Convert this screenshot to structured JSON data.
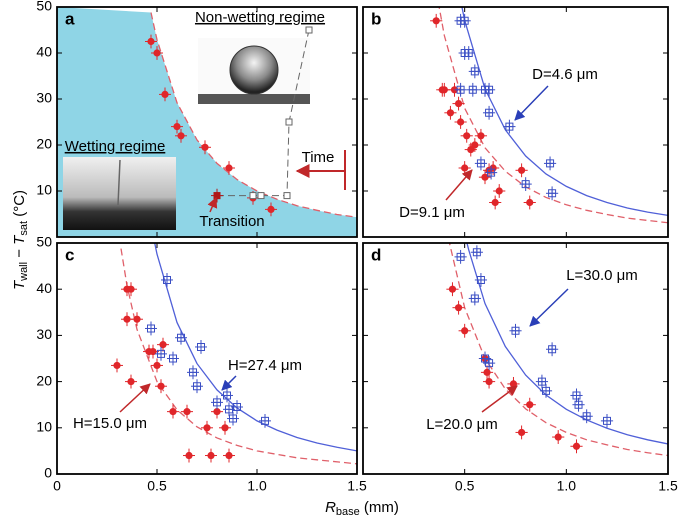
{
  "figure": {
    "xlabel": [
      "R",
      "base",
      " (mm)"
    ],
    "ylabel": [
      "T",
      "wall",
      " − ",
      "T",
      "sat",
      " (°C)"
    ]
  },
  "chart_data": [
    {
      "type": "scatter",
      "label": "a",
      "xlim": [
        0,
        1.5
      ],
      "ylim": [
        0,
        50
      ],
      "xticks": [
        0,
        0.5,
        1,
        1.5
      ],
      "xtick_labels": false,
      "yticks": [
        10,
        20,
        30,
        40,
        50
      ],
      "ytick_labels": true,
      "fill_below": {
        "series": 0,
        "color": "#8fd5e6"
      },
      "series": [
        {
          "mode": "line",
          "color": "#e0606a",
          "dash": true,
          "x": [
            0.47,
            0.5,
            0.6,
            0.7,
            0.8,
            0.9,
            1.0,
            1.1,
            1.2,
            1.3,
            1.4,
            1.5
          ],
          "y": [
            48.8,
            42.9,
            29.2,
            21.1,
            16.0,
            12.5,
            10,
            8.2,
            6.8,
            5.8,
            4.9,
            4.3
          ]
        },
        {
          "mode": "markers",
          "marker": "circle",
          "color": "#e0262a",
          "xerr": 0.03,
          "yerr": 1.5,
          "x": [
            0.47,
            0.5,
            0.54,
            0.6,
            0.62,
            0.74,
            0.86,
            0.98,
            1.07
          ],
          "y": [
            42.5,
            40,
            31,
            24,
            22,
            19.5,
            15,
            8.5,
            6
          ]
        },
        {
          "mode": "lines+markers",
          "marker": "square-open",
          "color": "#666666",
          "dash": true,
          "x": [
            0.8,
            0.98,
            1.02,
            1.15,
            1.16,
            1.26
          ],
          "y": [
            9,
            9,
            9,
            9,
            25,
            45
          ]
        },
        {
          "mode": "markers",
          "marker": "square",
          "color": "#b01818",
          "xerr": 0.03,
          "yerr": 1.5,
          "x": [
            0.8
          ],
          "y": [
            9
          ]
        }
      ],
      "annotations": [
        {
          "text": "Non-wetting regime",
          "color": "#000000"
        },
        {
          "text": "Wetting regime",
          "color": "#000000"
        },
        {
          "text": "Time",
          "color": "#c0282a"
        },
        {
          "text": "Transition",
          "color": "#c0282a"
        }
      ]
    },
    {
      "type": "scatter",
      "label": "b",
      "xlim": [
        0,
        1.5
      ],
      "ylim": [
        0,
        50
      ],
      "xticks": [
        0,
        0.5,
        1,
        1.5
      ],
      "xtick_labels": false,
      "yticks": [
        0,
        10,
        20,
        30,
        40,
        50
      ],
      "ytick_labels": false,
      "series": [
        {
          "mode": "line",
          "color": "#5060d8",
          "dash": false,
          "x": [
            0.48,
            0.5,
            0.6,
            0.7,
            0.8,
            0.9,
            1.0,
            1.1,
            1.2,
            1.3,
            1.4,
            1.5
          ],
          "y": [
            51.4,
            47.1,
            32.2,
            23.3,
            17.6,
            13.7,
            11,
            9.0,
            7.5,
            6.3,
            5.4,
            4.7
          ]
        },
        {
          "mode": "line",
          "color": "#e0606a",
          "dash": true,
          "x": [
            0.37,
            0.4,
            0.5,
            0.6,
            0.7,
            0.8,
            0.9,
            1.0,
            1.1,
            1.2,
            1.3,
            1.4,
            1.5
          ],
          "y": [
            51.1,
            43.8,
            28,
            19.4,
            14.3,
            10.9,
            8.6,
            7,
            5.8,
            4.9,
            4.1,
            3.6,
            3.1
          ]
        },
        {
          "mode": "markers",
          "marker": "circle",
          "color": "#e0262a",
          "xerr": 0.03,
          "yerr": 1.5,
          "x": [
            0.36,
            0.39,
            0.4,
            0.43,
            0.45,
            0.47,
            0.48,
            0.51,
            0.53,
            0.55,
            0.58,
            0.5,
            0.62,
            0.64,
            0.6,
            0.67,
            0.65,
            0.78,
            0.82
          ],
          "y": [
            47,
            32,
            32,
            27,
            32,
            29,
            25,
            22,
            19,
            20,
            22,
            15,
            14.5,
            15,
            13,
            10,
            7.5,
            14.5,
            7.5
          ]
        },
        {
          "mode": "markers",
          "marker": "square-cross",
          "color": "#3b4fc4",
          "xerr": 0.03,
          "yerr": 1.5,
          "x": [
            0.48,
            0.5,
            0.5,
            0.52,
            0.55,
            0.54,
            0.48,
            0.6,
            0.62,
            0.62,
            0.72,
            0.58,
            0.63,
            0.8,
            0.92,
            0.93
          ],
          "y": [
            47,
            47,
            40,
            40,
            36,
            32,
            32,
            32,
            32,
            27,
            24,
            16,
            14,
            11.5,
            16,
            9.5
          ]
        }
      ],
      "annotations": [
        {
          "text": "D=4.6 μm",
          "color": "#2a3fb8"
        },
        {
          "text": "D=9.1 μm",
          "color": "#c0282a"
        }
      ]
    },
    {
      "type": "scatter",
      "label": "c",
      "xlim": [
        0,
        1.5
      ],
      "ylim": [
        0,
        50
      ],
      "xticks": [
        0,
        0.5,
        {
          "value": 1,
          "label": "1.0"
        },
        1.5
      ],
      "xtick_labels": true,
      "yticks": [
        0,
        10,
        20,
        30,
        40,
        50
      ],
      "ytick_labels": true,
      "series": [
        {
          "mode": "line",
          "color": "#5060d8",
          "dash": false,
          "x": [
            0.48,
            0.5,
            0.6,
            0.7,
            0.8,
            0.9,
            1.0,
            1.1,
            1.2,
            1.3,
            1.4,
            1.5
          ],
          "y": [
            51.8,
            47.6,
            32.8,
            23.9,
            18.2,
            14.3,
            11.5,
            9.5,
            7.9,
            6.7,
            5.8,
            5.0
          ]
        },
        {
          "mode": "line",
          "color": "#e0606a",
          "dash": true,
          "x": [
            0.32,
            0.35,
            0.4,
            0.5,
            0.6,
            0.7,
            0.8,
            0.9,
            1.0,
            1.2,
            1.5
          ],
          "y": [
            48.8,
            40.8,
            31.3,
            20,
            13.9,
            10.2,
            7.8,
            6.2,
            5,
            3.5,
            2.2
          ]
        },
        {
          "mode": "markers",
          "marker": "circle",
          "color": "#e0262a",
          "xerr": 0.03,
          "yerr": 1.5,
          "x": [
            0.35,
            0.37,
            0.35,
            0.4,
            0.3,
            0.37,
            0.46,
            0.48,
            0.5,
            0.53,
            0.52,
            0.58,
            0.65,
            0.8,
            0.75,
            0.84,
            0.66,
            0.77,
            0.86
          ],
          "y": [
            40,
            40,
            33.5,
            33.5,
            23.5,
            20,
            26.5,
            26.5,
            23.5,
            28,
            19,
            13.5,
            13.5,
            13.5,
            10,
            10,
            4,
            4,
            4
          ]
        },
        {
          "mode": "markers",
          "marker": "square-cross",
          "color": "#3b4fc4",
          "xerr": 0.03,
          "yerr": 1.5,
          "x": [
            0.55,
            0.47,
            0.62,
            0.52,
            0.58,
            0.72,
            0.68,
            0.7,
            0.8,
            0.85,
            0.86,
            0.9,
            0.88,
            1.04
          ],
          "y": [
            42,
            31.5,
            29.5,
            26,
            25,
            27.5,
            22,
            19,
            15.5,
            17,
            14,
            14.5,
            12,
            11.5
          ]
        }
      ],
      "annotations": [
        {
          "text": "H=27.4 μm",
          "color": "#2a3fb8"
        },
        {
          "text": "H=15.0 μm",
          "color": "#c0282a"
        }
      ]
    },
    {
      "type": "scatter",
      "label": "d",
      "xlim": [
        0,
        1.5
      ],
      "ylim": [
        0,
        50
      ],
      "xticks": [
        0.5,
        {
          "value": 1,
          "label": "1.0"
        },
        1.5
      ],
      "xtick_labels": true,
      "yticks": [
        0,
        10,
        20,
        30,
        40,
        50
      ],
      "ytick_labels": false,
      "series": [
        {
          "mode": "line",
          "color": "#5060d8",
          "dash": false,
          "x": [
            0.5,
            0.52,
            0.6,
            0.7,
            0.8,
            0.9,
            1.0,
            1.1,
            1.2,
            1.3,
            1.4,
            1.5
          ],
          "y": [
            52,
            48.5,
            36.9,
            27.6,
            21.4,
            17.1,
            14,
            11.7,
            9.9,
            8.5,
            7.4,
            6.5
          ]
        },
        {
          "mode": "line",
          "color": "#e0606a",
          "dash": true,
          "x": [
            0.42,
            0.5,
            0.6,
            0.7,
            0.8,
            0.9,
            1.0,
            1.1,
            1.2,
            1.3,
            1.4,
            1.5
          ],
          "y": [
            51,
            36,
            25,
            18.4,
            14.1,
            11.1,
            9,
            7.4,
            6.3,
            5.3,
            4.6,
            4
          ]
        },
        {
          "mode": "markers",
          "marker": "circle",
          "color": "#e0262a",
          "xerr": 0.03,
          "yerr": 1.5,
          "x": [
            0.44,
            0.47,
            0.5,
            0.6,
            0.61,
            0.62,
            0.74,
            0.82,
            0.78,
            0.96,
            1.05
          ],
          "y": [
            40,
            36,
            31,
            25,
            22,
            20,
            19.5,
            15,
            9,
            8,
            6
          ]
        },
        {
          "mode": "markers",
          "marker": "square-cross",
          "color": "#3b4fc4",
          "xerr": 0.03,
          "yerr": 1.5,
          "x": [
            0.48,
            0.56,
            0.58,
            0.55,
            0.6,
            0.62,
            0.75,
            0.93,
            0.88,
            0.9,
            1.05,
            1.06,
            1.1,
            1.2
          ],
          "y": [
            47,
            48,
            42,
            38,
            25,
            24,
            31,
            27,
            20,
            18,
            17,
            15,
            12.5,
            11.5
          ]
        }
      ],
      "annotations": [
        {
          "text": "L=30.0 μm",
          "color": "#2a3fb8"
        },
        {
          "text": "L=20.0 μm",
          "color": "#c0282a"
        }
      ]
    }
  ]
}
